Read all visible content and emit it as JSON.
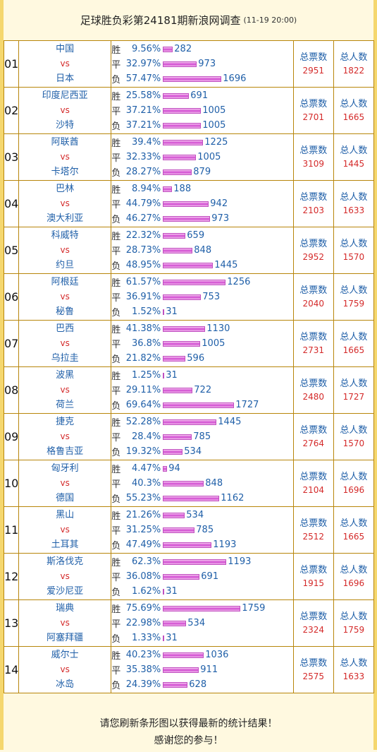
{
  "header": {
    "title": "足球胜负彩第24181期新浪网调查",
    "date": "(11-19 20:00)"
  },
  "labels": {
    "win": "胜",
    "draw": "平",
    "lose": "负",
    "vs": "vs",
    "total_votes": "总票数",
    "total_people": "总人数"
  },
  "colors": {
    "team": "#1F5FA8",
    "vs": "#D42A2A",
    "bar": "#D04BD0",
    "border": "#B8860B"
  },
  "matches": [
    {
      "no": "01",
      "home": "中国",
      "away": "日本",
      "win_pct": "9.56%",
      "win_count": "282",
      "draw_pct": "32.97%",
      "draw_count": "973",
      "lose_pct": "57.47%",
      "lose_count": "1696",
      "total_votes": "2951",
      "total_people": "1822"
    },
    {
      "no": "02",
      "home": "印度尼西亚",
      "away": "沙特",
      "win_pct": "25.58%",
      "win_count": "691",
      "draw_pct": "37.21%",
      "draw_count": "1005",
      "lose_pct": "37.21%",
      "lose_count": "1005",
      "total_votes": "2701",
      "total_people": "1665"
    },
    {
      "no": "03",
      "home": "阿联酋",
      "away": "卡塔尔",
      "win_pct": "39.4%",
      "win_count": "1225",
      "draw_pct": "32.33%",
      "draw_count": "1005",
      "lose_pct": "28.27%",
      "lose_count": "879",
      "total_votes": "3109",
      "total_people": "1445"
    },
    {
      "no": "04",
      "home": "巴林",
      "away": "澳大利亚",
      "win_pct": "8.94%",
      "win_count": "188",
      "draw_pct": "44.79%",
      "draw_count": "942",
      "lose_pct": "46.27%",
      "lose_count": "973",
      "total_votes": "2103",
      "total_people": "1633"
    },
    {
      "no": "05",
      "home": "科威特",
      "away": "约旦",
      "win_pct": "22.32%",
      "win_count": "659",
      "draw_pct": "28.73%",
      "draw_count": "848",
      "lose_pct": "48.95%",
      "lose_count": "1445",
      "total_votes": "2952",
      "total_people": "1570"
    },
    {
      "no": "06",
      "home": "阿根廷",
      "away": "秘鲁",
      "win_pct": "61.57%",
      "win_count": "1256",
      "draw_pct": "36.91%",
      "draw_count": "753",
      "lose_pct": "1.52%",
      "lose_count": "31",
      "total_votes": "2040",
      "total_people": "1759"
    },
    {
      "no": "07",
      "home": "巴西",
      "away": "乌拉圭",
      "win_pct": "41.38%",
      "win_count": "1130",
      "draw_pct": "36.8%",
      "draw_count": "1005",
      "lose_pct": "21.82%",
      "lose_count": "596",
      "total_votes": "2731",
      "total_people": "1665"
    },
    {
      "no": "08",
      "home": "波黑",
      "away": "荷兰",
      "win_pct": "1.25%",
      "win_count": "31",
      "draw_pct": "29.11%",
      "draw_count": "722",
      "lose_pct": "69.64%",
      "lose_count": "1727",
      "total_votes": "2480",
      "total_people": "1727"
    },
    {
      "no": "09",
      "home": "捷克",
      "away": "格鲁吉亚",
      "win_pct": "52.28%",
      "win_count": "1445",
      "draw_pct": "28.4%",
      "draw_count": "785",
      "lose_pct": "19.32%",
      "lose_count": "534",
      "total_votes": "2764",
      "total_people": "1570"
    },
    {
      "no": "10",
      "home": "匈牙利",
      "away": "德国",
      "win_pct": "4.47%",
      "win_count": "94",
      "draw_pct": "40.3%",
      "draw_count": "848",
      "lose_pct": "55.23%",
      "lose_count": "1162",
      "total_votes": "2104",
      "total_people": "1696"
    },
    {
      "no": "11",
      "home": "黑山",
      "away": "土耳其",
      "win_pct": "21.26%",
      "win_count": "534",
      "draw_pct": "31.25%",
      "draw_count": "785",
      "lose_pct": "47.49%",
      "lose_count": "1193",
      "total_votes": "2512",
      "total_people": "1665"
    },
    {
      "no": "12",
      "home": "斯洛伐克",
      "away": "爱沙尼亚",
      "win_pct": "62.3%",
      "win_count": "1193",
      "draw_pct": "36.08%",
      "draw_count": "691",
      "lose_pct": "1.62%",
      "lose_count": "31",
      "total_votes": "1915",
      "total_people": "1696"
    },
    {
      "no": "13",
      "home": "瑞典",
      "away": "阿塞拜疆",
      "win_pct": "75.69%",
      "win_count": "1759",
      "draw_pct": "22.98%",
      "draw_count": "534",
      "lose_pct": "1.33%",
      "lose_count": "31",
      "total_votes": "2324",
      "total_people": "1759"
    },
    {
      "no": "14",
      "home": "威尔士",
      "away": "冰岛",
      "win_pct": "40.23%",
      "win_count": "1036",
      "draw_pct": "35.38%",
      "draw_count": "911",
      "lose_pct": "24.39%",
      "lose_count": "628",
      "total_votes": "2575",
      "total_people": "1633"
    }
  ],
  "footer": {
    "line1": "请您刷新条形图以获得最新的统计结果！",
    "line2": "感谢您的参与！"
  }
}
